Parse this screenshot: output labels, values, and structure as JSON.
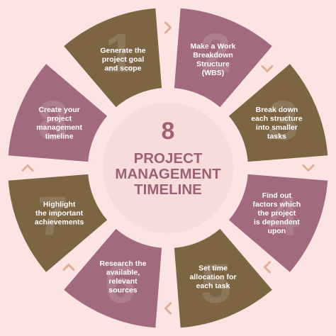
{
  "colors": {
    "background": "#fbe4e2",
    "center_circle": "#f8dcd9",
    "mauve": "#a26a7e",
    "olive": "#7d6443",
    "title_text": "#9b6175",
    "arrow": "#e0ad97"
  },
  "center": {
    "number": "8",
    "title_lines": [
      "PROJECT",
      "MANAGEMENT",
      "TIMELINE"
    ]
  },
  "steps": [
    {
      "number": "1",
      "color": "olive",
      "lines": [
        "Generate the",
        "project goal",
        "and scope"
      ]
    },
    {
      "number": "2",
      "color": "mauve",
      "lines": [
        "Make a Work",
        "Breakdown",
        "Structure",
        "(WBS)"
      ]
    },
    {
      "number": "3",
      "color": "olive",
      "lines": [
        "Break down",
        "each structure",
        "into smaller",
        "tasks"
      ]
    },
    {
      "number": "4",
      "color": "mauve",
      "lines": [
        "Find out",
        "factors which",
        "the project",
        "is dependent",
        "upon"
      ]
    },
    {
      "number": "5",
      "color": "olive",
      "lines": [
        "Set time",
        "allocation for",
        "each task"
      ]
    },
    {
      "number": "6",
      "color": "mauve",
      "lines": [
        "Research the",
        "available,",
        "relevant",
        "sources"
      ]
    },
    {
      "number": "7",
      "color": "olive",
      "lines": [
        "Highlight",
        "the important",
        "achievements"
      ]
    },
    {
      "number": "8",
      "color": "mauve",
      "lines": [
        "Create your",
        "project",
        "management",
        "timeline"
      ]
    }
  ],
  "arrows": [
    "chevron-right-icon",
    "chevron-down-icon",
    "chevron-down-icon",
    "chevron-left-icon",
    "chevron-left-icon",
    "chevron-up-icon",
    "chevron-up-icon"
  ]
}
